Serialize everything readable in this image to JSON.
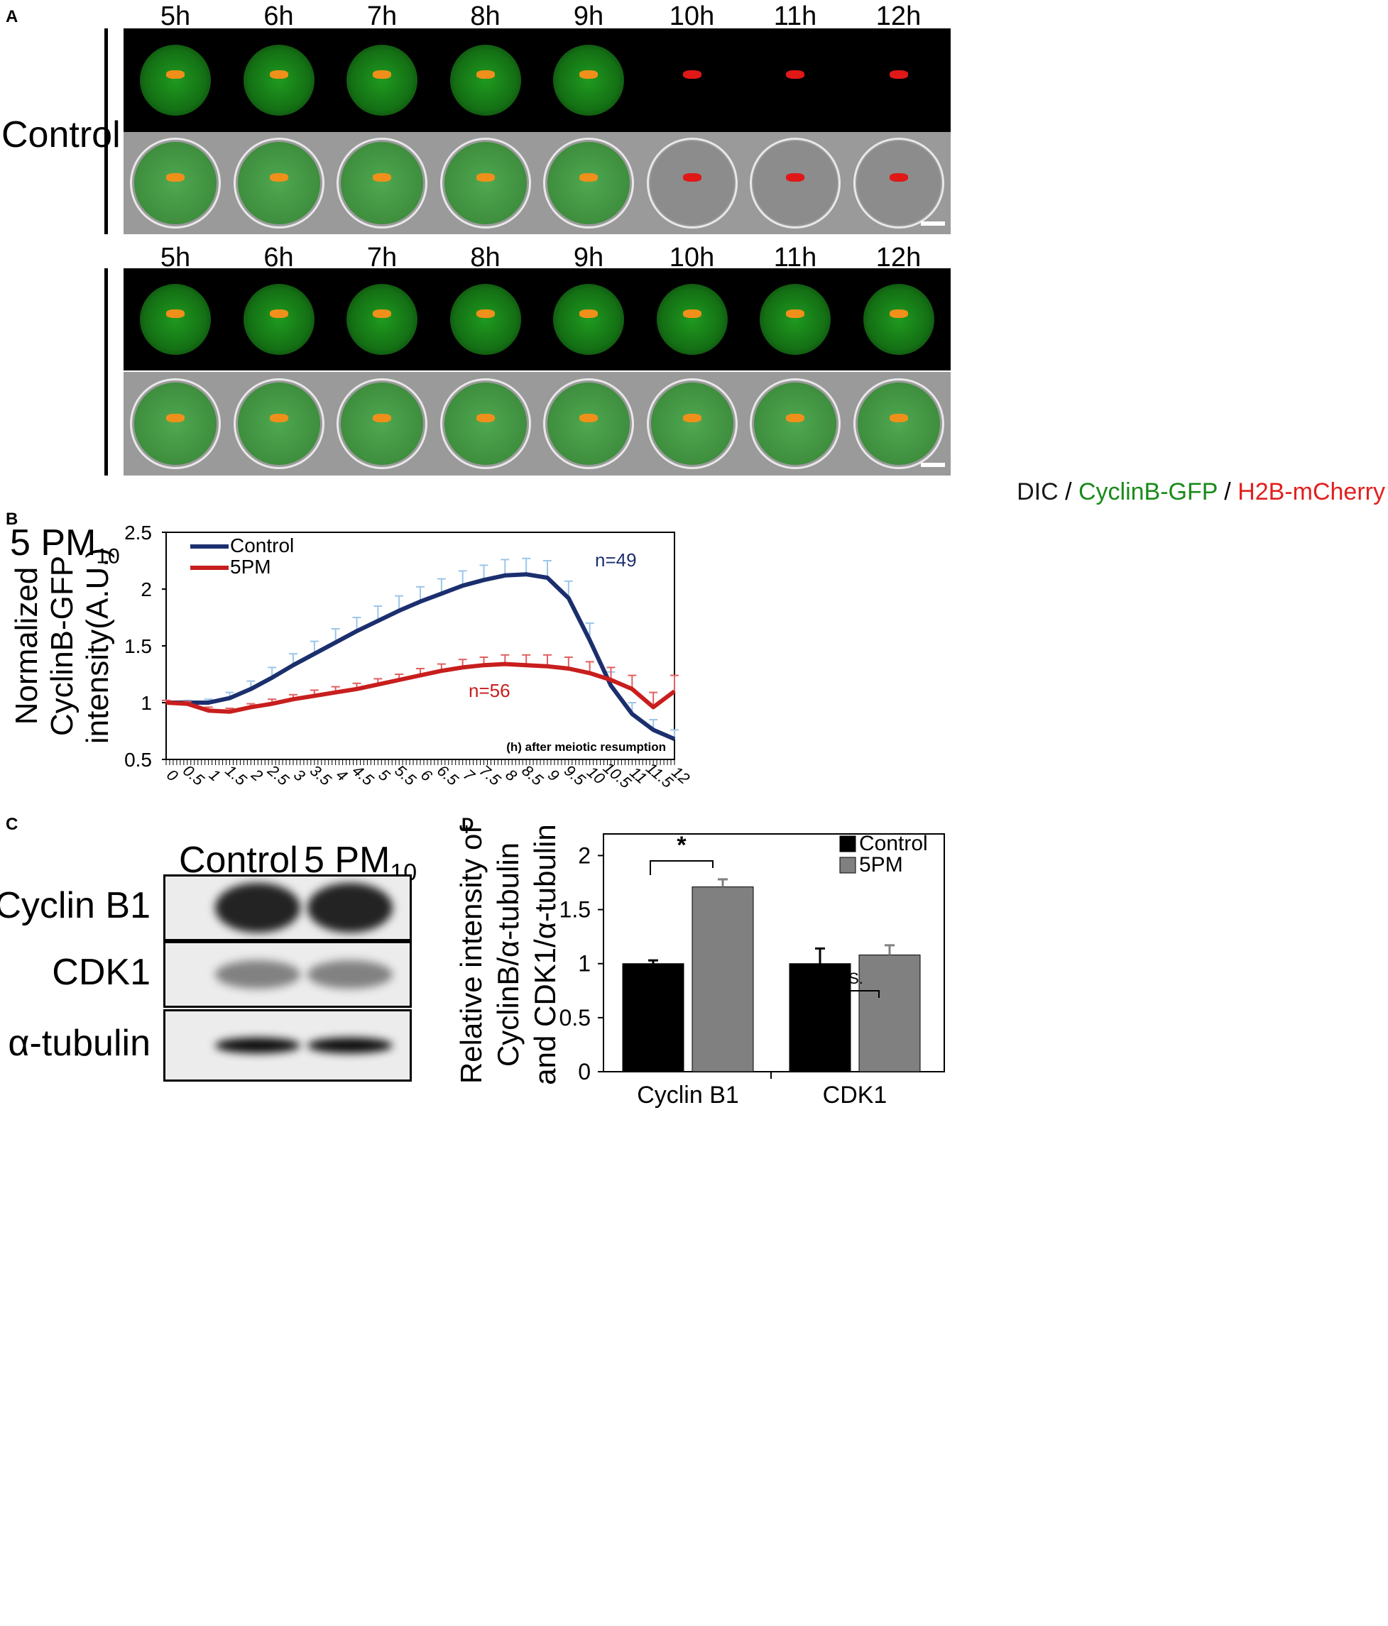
{
  "panels": {
    "a": "A",
    "b": "B",
    "c": "C",
    "d": "D"
  },
  "panel_a": {
    "timepoints": [
      "5h",
      "6h",
      "7h",
      "8h",
      "9h",
      "10h",
      "11h",
      "12h"
    ],
    "row1_label": "Control",
    "row2_label_main": "5 PM",
    "row2_label_sub": "10",
    "legend": {
      "dic": "DIC",
      "sep": " / ",
      "gfp": "CyclinB-GFP",
      "mcherry": "H2B-mCherry"
    },
    "colors": {
      "gfp": "#1a8a1a",
      "mcherry": "#e0201e",
      "dic": "#1a1a1a"
    }
  },
  "chart_data": [
    {
      "type": "line",
      "ylabel": [
        "Normalized",
        "CyclinB-GFP",
        "intensity(A.U.)"
      ],
      "xlabel": "(h) after meiotic resumption",
      "ylim": [
        0.5,
        2.5
      ],
      "yticks": [
        "0.5",
        "1",
        "1.5",
        "2",
        "2.5"
      ],
      "xticks": [
        "0",
        "0.5",
        "1",
        "1.5",
        "2",
        "2.5",
        "3",
        "3.5",
        "4",
        "4.5",
        "5",
        "5.5",
        "6",
        "6.5",
        "7",
        "7.5",
        "8",
        "8.5",
        "9",
        "9.5",
        "10",
        "10.5",
        "11",
        "11.5",
        "12"
      ],
      "legend_position": "top-left",
      "series": [
        {
          "name": "Control",
          "color": "#1b2f6e",
          "error_color": "#9cc5e8",
          "n_label": "n=49",
          "x": [
            0,
            0.5,
            1,
            1.5,
            2,
            2.5,
            3,
            3.5,
            4,
            4.5,
            5,
            5.5,
            6,
            6.5,
            7,
            7.5,
            8,
            8.5,
            9,
            9.5,
            10,
            10.5,
            11,
            11.5,
            12
          ],
          "values": [
            1.0,
            1.0,
            1.0,
            1.04,
            1.12,
            1.22,
            1.33,
            1.43,
            1.53,
            1.63,
            1.72,
            1.81,
            1.89,
            1.96,
            2.03,
            2.08,
            2.12,
            2.13,
            2.1,
            1.92,
            1.55,
            1.15,
            0.9,
            0.76,
            0.68
          ],
          "errors": [
            0.02,
            0.02,
            0.03,
            0.05,
            0.07,
            0.09,
            0.1,
            0.11,
            0.12,
            0.12,
            0.13,
            0.13,
            0.13,
            0.13,
            0.13,
            0.13,
            0.14,
            0.14,
            0.15,
            0.15,
            0.15,
            0.12,
            0.1,
            0.09,
            0.08
          ]
        },
        {
          "name": "5PM",
          "color": "#c81e1e",
          "error_color": "#e06060",
          "n_label": "n=56",
          "x": [
            0,
            0.5,
            1,
            1.5,
            2,
            2.5,
            3,
            3.5,
            4,
            4.5,
            5,
            5.5,
            6,
            6.5,
            7,
            7.5,
            8,
            8.5,
            9,
            9.5,
            10,
            10.5,
            11,
            11.5,
            12
          ],
          "values": [
            1.0,
            0.99,
            0.93,
            0.92,
            0.96,
            0.99,
            1.03,
            1.06,
            1.09,
            1.12,
            1.16,
            1.2,
            1.24,
            1.28,
            1.31,
            1.33,
            1.34,
            1.33,
            1.32,
            1.3,
            1.26,
            1.2,
            1.12,
            0.96,
            1.1
          ],
          "errors": [
            0.02,
            0.02,
            0.03,
            0.03,
            0.03,
            0.04,
            0.04,
            0.05,
            0.05,
            0.05,
            0.05,
            0.05,
            0.06,
            0.06,
            0.07,
            0.07,
            0.08,
            0.09,
            0.1,
            0.1,
            0.1,
            0.11,
            0.12,
            0.13,
            0.14
          ]
        }
      ]
    },
    {
      "type": "bar",
      "ylabel": [
        "Relative intensity of",
        "CyclinB/α-tubulin",
        "and CDK1/α-tubulin"
      ],
      "categories": [
        "Cyclin B1",
        "CDK1"
      ],
      "ylim": [
        0,
        2.2
      ],
      "yticks": [
        "0",
        "0.5",
        "1",
        "1.5",
        "2"
      ],
      "legend_position": "top-right",
      "series": [
        {
          "name": "Control",
          "color": "#000000",
          "values": [
            1.0,
            1.0
          ],
          "errors": [
            0.03,
            0.14
          ]
        },
        {
          "name": "5PM",
          "color": "#808080",
          "values": [
            1.71,
            1.08
          ],
          "errors": [
            0.07,
            0.09
          ]
        }
      ],
      "annotations": [
        "*",
        "N.S."
      ]
    }
  ],
  "panel_c": {
    "col1": "Control",
    "col2_main": "5 PM",
    "col2_sub": "10",
    "rows": [
      "Cyclin B1",
      "CDK1",
      "α-tubulin"
    ]
  }
}
